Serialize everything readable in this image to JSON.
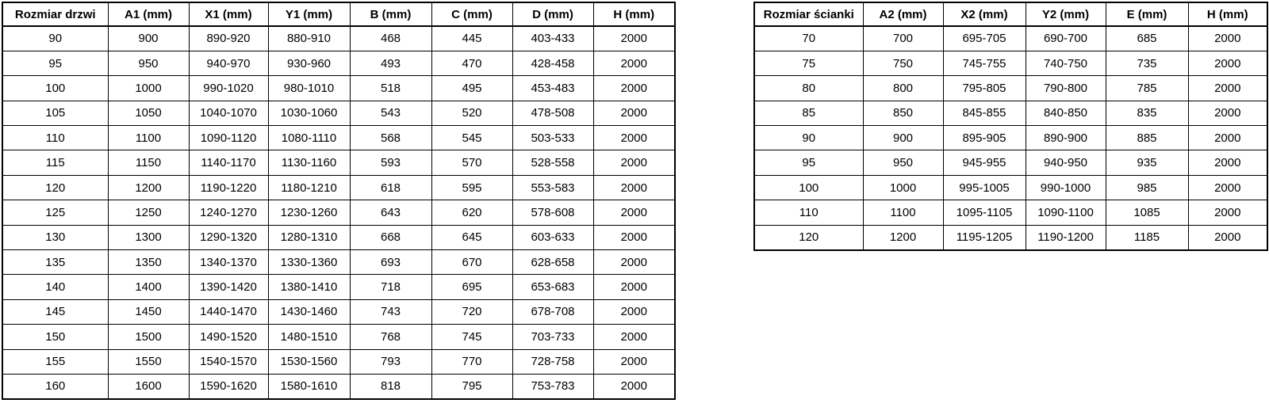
{
  "colors": {
    "background": "#ffffff",
    "border": "#000000",
    "text": "#000000"
  },
  "tables": {
    "doors": {
      "headers": [
        "Rozmiar drzwi",
        "A1 (mm)",
        "X1 (mm)",
        "Y1 (mm)",
        "B (mm)",
        "C (mm)",
        "D (mm)",
        "H (mm)"
      ],
      "rows": [
        [
          "90",
          "900",
          "890-920",
          "880-910",
          "468",
          "445",
          "403-433",
          "2000"
        ],
        [
          "95",
          "950",
          "940-970",
          "930-960",
          "493",
          "470",
          "428-458",
          "2000"
        ],
        [
          "100",
          "1000",
          "990-1020",
          "980-1010",
          "518",
          "495",
          "453-483",
          "2000"
        ],
        [
          "105",
          "1050",
          "1040-1070",
          "1030-1060",
          "543",
          "520",
          "478-508",
          "2000"
        ],
        [
          "110",
          "1100",
          "1090-1120",
          "1080-1110",
          "568",
          "545",
          "503-533",
          "2000"
        ],
        [
          "115",
          "1150",
          "1140-1170",
          "1130-1160",
          "593",
          "570",
          "528-558",
          "2000"
        ],
        [
          "120",
          "1200",
          "1190-1220",
          "1180-1210",
          "618",
          "595",
          "553-583",
          "2000"
        ],
        [
          "125",
          "1250",
          "1240-1270",
          "1230-1260",
          "643",
          "620",
          "578-608",
          "2000"
        ],
        [
          "130",
          "1300",
          "1290-1320",
          "1280-1310",
          "668",
          "645",
          "603-633",
          "2000"
        ],
        [
          "135",
          "1350",
          "1340-1370",
          "1330-1360",
          "693",
          "670",
          "628-658",
          "2000"
        ],
        [
          "140",
          "1400",
          "1390-1420",
          "1380-1410",
          "718",
          "695",
          "653-683",
          "2000"
        ],
        [
          "145",
          "1450",
          "1440-1470",
          "1430-1460",
          "743",
          "720",
          "678-708",
          "2000"
        ],
        [
          "150",
          "1500",
          "1490-1520",
          "1480-1510",
          "768",
          "745",
          "703-733",
          "2000"
        ],
        [
          "155",
          "1550",
          "1540-1570",
          "1530-1560",
          "793",
          "770",
          "728-758",
          "2000"
        ],
        [
          "160",
          "1600",
          "1590-1620",
          "1580-1610",
          "818",
          "795",
          "753-783",
          "2000"
        ]
      ]
    },
    "walls": {
      "headers": [
        "Rozmiar ścianki",
        "A2 (mm)",
        "X2 (mm)",
        "Y2 (mm)",
        "E (mm)",
        "H (mm)"
      ],
      "rows": [
        [
          "70",
          "700",
          "695-705",
          "690-700",
          "685",
          "2000"
        ],
        [
          "75",
          "750",
          "745-755",
          "740-750",
          "735",
          "2000"
        ],
        [
          "80",
          "800",
          "795-805",
          "790-800",
          "785",
          "2000"
        ],
        [
          "85",
          "850",
          "845-855",
          "840-850",
          "835",
          "2000"
        ],
        [
          "90",
          "900",
          "895-905",
          "890-900",
          "885",
          "2000"
        ],
        [
          "95",
          "950",
          "945-955",
          "940-950",
          "935",
          "2000"
        ],
        [
          "100",
          "1000",
          "995-1005",
          "990-1000",
          "985",
          "2000"
        ],
        [
          "110",
          "1100",
          "1095-1105",
          "1090-1100",
          "1085",
          "2000"
        ],
        [
          "120",
          "1200",
          "1195-1205",
          "1190-1200",
          "1185",
          "2000"
        ]
      ]
    }
  }
}
